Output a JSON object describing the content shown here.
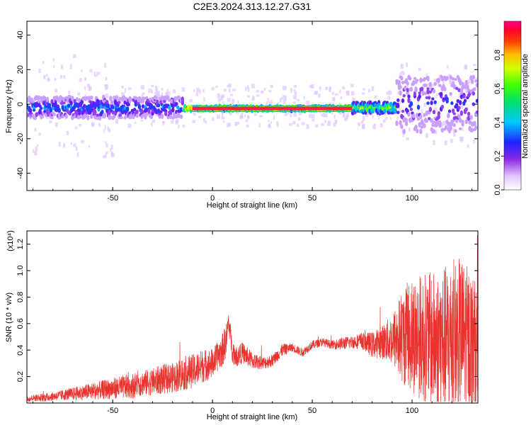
{
  "title": "C2E3.2024.313.12.27.G31",
  "colors": {
    "snr_line": "#e8332f",
    "spectrogram_bg": "#ffffff",
    "axis": "#000000"
  },
  "chart_data": [
    {
      "type": "heatmap",
      "xlabel": "Height of straight line (km)",
      "ylabel": "Frequency (Hz)",
      "xlim": [
        -93,
        133
      ],
      "ylim": [
        -50,
        48
      ],
      "xticks": [
        -50,
        0,
        50,
        100
      ],
      "yticks": [
        -40,
        -20,
        0,
        20,
        40
      ],
      "colorbar": {
        "label": "Normalized spectral amplitude",
        "range": [
          0,
          1
        ],
        "ticks": [
          "0.0",
          "0.2",
          "0.4",
          "0.6",
          "0.8"
        ],
        "colormap": "rainbow"
      }
    },
    {
      "type": "line",
      "xlabel": "Height of straight line (km)",
      "ylabel": "SNR (10 * v/v)",
      "ymultiplier": "(x10⁴)",
      "xlim": [
        -93,
        133
      ],
      "ylim": [
        0,
        1.3
      ],
      "xticks": [
        -50,
        0,
        50,
        100
      ],
      "yticks": [
        "0.2",
        "0.4",
        "0.6",
        "0.8",
        "1.0",
        "1.2"
      ],
      "series": [
        {
          "x": [
            -93,
            -90,
            -85,
            -80,
            -75,
            -70,
            -65,
            -60,
            -55,
            -50,
            -45,
            -40,
            -35,
            -30,
            -25,
            -20,
            -15,
            -10,
            -5,
            0,
            3,
            5,
            7,
            8,
            10,
            12,
            15,
            20,
            25,
            30,
            35,
            40,
            45,
            50,
            55,
            60,
            65,
            70,
            75,
            80,
            85,
            90,
            95,
            100,
            105,
            110,
            115,
            120,
            125,
            130,
            133
          ],
          "values": [
            0.03,
            0.04,
            0.04,
            0.05,
            0.06,
            0.07,
            0.08,
            0.09,
            0.1,
            0.11,
            0.12,
            0.13,
            0.15,
            0.16,
            0.18,
            0.19,
            0.22,
            0.24,
            0.28,
            0.3,
            0.36,
            0.4,
            0.48,
            0.62,
            0.4,
            0.35,
            0.38,
            0.32,
            0.3,
            0.32,
            0.4,
            0.42,
            0.38,
            0.44,
            0.46,
            0.44,
            0.45,
            0.46,
            0.47,
            0.44,
            0.46,
            0.48,
            0.5,
            0.52,
            0.5,
            0.48,
            0.46,
            0.48,
            0.52,
            0.45,
            0.4
          ],
          "fluctuation": [
            0.015,
            0.015,
            0.02,
            0.02,
            0.025,
            0.03,
            0.035,
            0.04,
            0.045,
            0.05,
            0.055,
            0.06,
            0.06,
            0.065,
            0.07,
            0.07,
            0.08,
            0.08,
            0.08,
            0.07,
            0.07,
            0.08,
            0.08,
            0.05,
            0.06,
            0.05,
            0.05,
            0.04,
            0.03,
            0.03,
            0.03,
            0.02,
            0.02,
            0.02,
            0.02,
            0.02,
            0.03,
            0.03,
            0.04,
            0.06,
            0.08,
            0.12,
            0.22,
            0.28,
            0.3,
            0.32,
            0.35,
            0.38,
            0.36,
            0.34,
            0.3
          ]
        }
      ]
    }
  ]
}
